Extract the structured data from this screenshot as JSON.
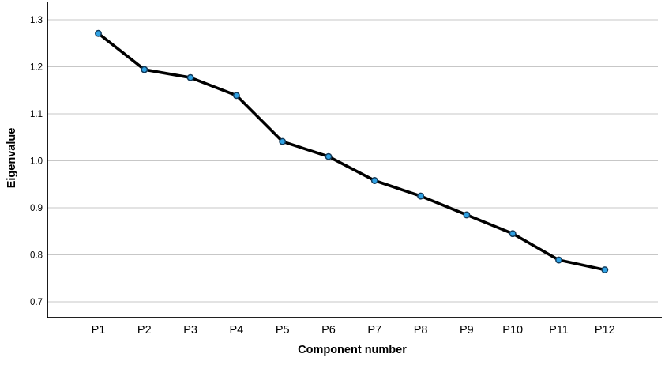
{
  "chart_data": {
    "type": "line",
    "title": "",
    "xlabel": "Component number",
    "ylabel": "Eigenvalue",
    "categories": [
      "P1",
      "P2",
      "P3",
      "P4",
      "P5",
      "P6",
      "P7",
      "P8",
      "P9",
      "P10",
      "P11",
      "P12"
    ],
    "series": [
      {
        "name": "Eigenvalue",
        "values": [
          1.271,
          1.194,
          1.177,
          1.139,
          1.041,
          1.009,
          0.958,
          0.925,
          0.885,
          0.845,
          0.789,
          0.768
        ]
      }
    ],
    "ytick_values": [
      0.7,
      0.8,
      0.9,
      1.0,
      1.1,
      1.2,
      1.3
    ],
    "ytick_labels": [
      "0.7",
      "0.8",
      "0.9",
      "1.0",
      "1.1",
      "1.2",
      "1.3"
    ],
    "ylim": [
      0.666,
      1.339
    ],
    "grid": "horizontal",
    "legend": "none",
    "colors": {
      "line": "#000000",
      "marker_fill": "#2FA2E4",
      "marker_stroke": "#123A5A",
      "grid": "#c7c7c7",
      "axis": "#000000",
      "tick_text": "#000000",
      "background": "#ffffff"
    }
  }
}
